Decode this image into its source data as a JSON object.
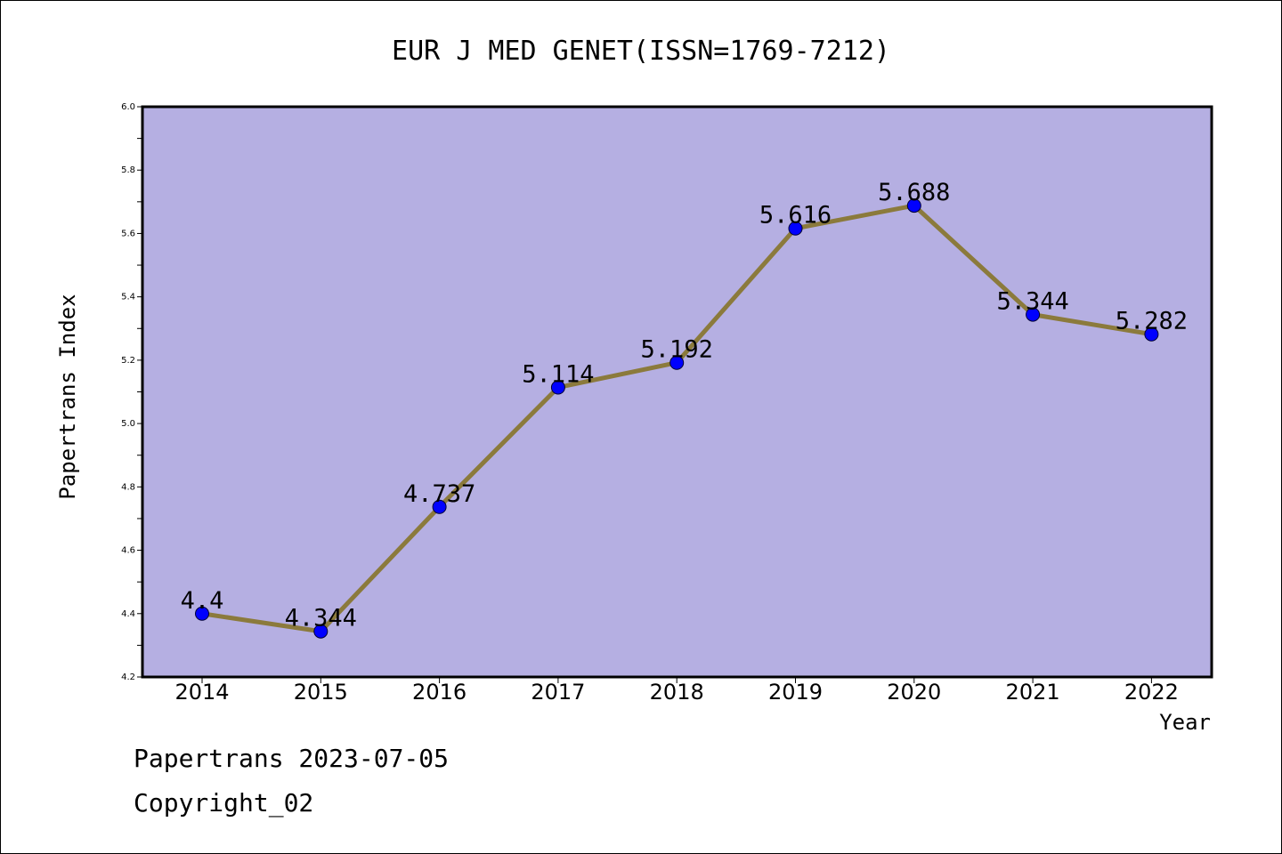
{
  "chart_data": {
    "type": "line",
    "title": "EUR J MED GENET(ISSN=1769-7212)",
    "xlabel": "Year",
    "ylabel": "Papertrans Index",
    "categories": [
      "2014",
      "2015",
      "2016",
      "2017",
      "2018",
      "2019",
      "2020",
      "2021",
      "2022"
    ],
    "values": [
      4.4,
      4.344,
      4.737,
      5.114,
      5.192,
      5.616,
      5.688,
      5.344,
      5.282
    ],
    "data_labels": [
      "4.4",
      "4.344",
      "4.737",
      "5.114",
      "5.192",
      "5.616",
      "5.688",
      "5.344",
      "5.282"
    ],
    "ylim": [
      4.2,
      6.0
    ],
    "yticks": [
      "4.2",
      "4.4",
      "4.6",
      "4.8",
      "5.0",
      "5.2",
      "5.4",
      "5.6",
      "5.8",
      "6.0"
    ],
    "grid": false,
    "legend": "none",
    "colors": {
      "plot_background": "#b5afe2",
      "line": "#8b7a3c",
      "marker": "#0000ff"
    }
  },
  "footer": {
    "line1": "Papertrans 2023-07-05",
    "line2": "Copyright_02"
  }
}
